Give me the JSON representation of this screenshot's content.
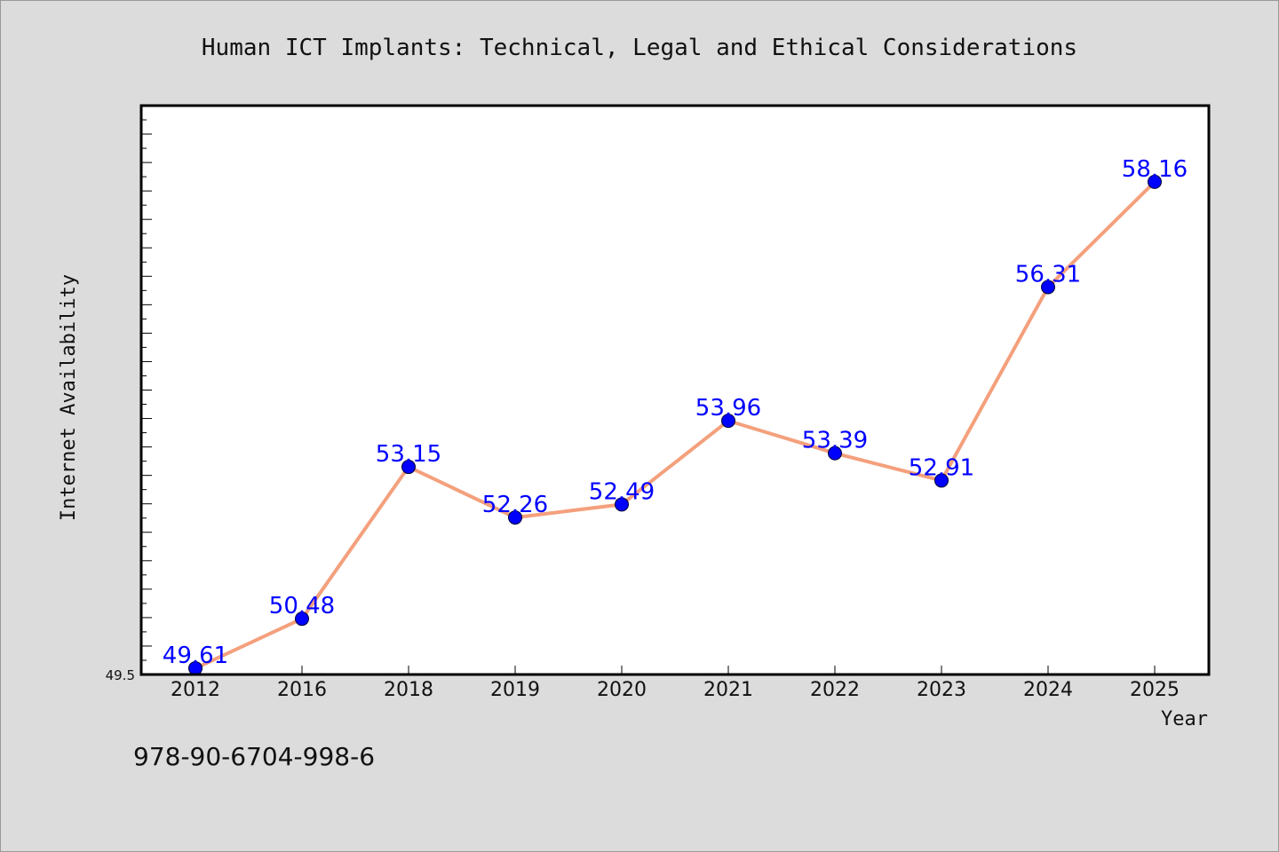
{
  "chart_data": {
    "type": "line",
    "title": "Human ICT Implants: Technical, Legal and Ethical Considerations",
    "xlabel": "Year",
    "ylabel": "Internet Availability",
    "categories": [
      "2012",
      "2016",
      "2018",
      "2019",
      "2020",
      "2021",
      "2022",
      "2023",
      "2024",
      "2025"
    ],
    "values": [
      49.61,
      50.48,
      53.15,
      52.26,
      52.49,
      53.96,
      53.39,
      52.91,
      56.31,
      58.16
    ],
    "data_labels": [
      "49.61",
      "50.48",
      "53.15",
      "52.26",
      "52.49",
      "53.96",
      "53.39",
      "52.91",
      "56.31",
      "58.16"
    ],
    "ytick_labels": [
      "49.5"
    ],
    "ylim": [
      49.5,
      59.5
    ],
    "grid": false,
    "line_color": "#f4a07c",
    "marker_color": "#0000ff",
    "label_color": "#0000ff",
    "background_color": "#dcdcdc",
    "plot_background_color": "#ffffff"
  },
  "footer": {
    "isbn": "978-90-6704-998-6"
  }
}
